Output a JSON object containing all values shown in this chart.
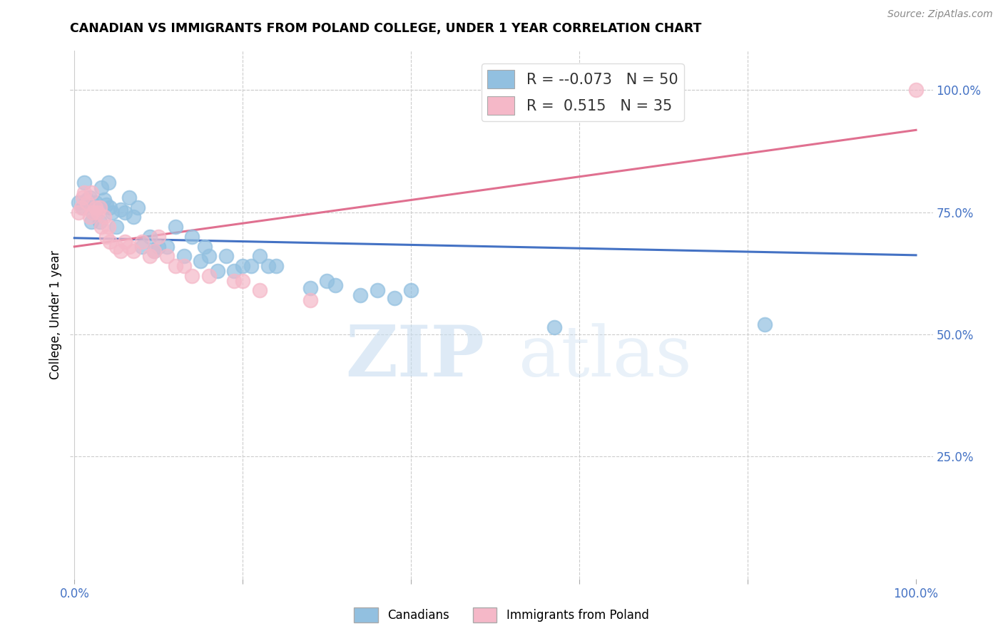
{
  "title": "CANADIAN VS IMMIGRANTS FROM POLAND COLLEGE, UNDER 1 YEAR CORRELATION CHART",
  "source": "Source: ZipAtlas.com",
  "ylabel": "College, Under 1 year",
  "right_yticks_labels": [
    "100.0%",
    "75.0%",
    "50.0%",
    "25.0%"
  ],
  "right_ytick_vals": [
    1.0,
    0.75,
    0.5,
    0.25
  ],
  "legend_blue_r": "-0.073",
  "legend_blue_n": "50",
  "legend_pink_r": "0.515",
  "legend_pink_n": "35",
  "blue_color": "#92c0e0",
  "pink_color": "#f5b8c8",
  "blue_line_color": "#4472c4",
  "pink_line_color": "#e07090",
  "watermark_zip": "ZIP",
  "watermark_atlas": "atlas",
  "blue_x": [
    0.005,
    0.01,
    0.012,
    0.015,
    0.018,
    0.02,
    0.022,
    0.025,
    0.028,
    0.03,
    0.032,
    0.035,
    0.038,
    0.04,
    0.042,
    0.045,
    0.05,
    0.055,
    0.06,
    0.065,
    0.07,
    0.075,
    0.08,
    0.09,
    0.095,
    0.1,
    0.11,
    0.12,
    0.13,
    0.14,
    0.15,
    0.155,
    0.16,
    0.17,
    0.18,
    0.19,
    0.2,
    0.21,
    0.22,
    0.23,
    0.24,
    0.28,
    0.3,
    0.31,
    0.34,
    0.36,
    0.38,
    0.4,
    0.82,
    0.57
  ],
  "blue_y": [
    0.77,
    0.76,
    0.81,
    0.775,
    0.78,
    0.73,
    0.75,
    0.77,
    0.76,
    0.73,
    0.8,
    0.775,
    0.765,
    0.81,
    0.76,
    0.75,
    0.72,
    0.755,
    0.75,
    0.78,
    0.74,
    0.76,
    0.68,
    0.7,
    0.67,
    0.68,
    0.68,
    0.72,
    0.66,
    0.7,
    0.65,
    0.68,
    0.66,
    0.63,
    0.66,
    0.63,
    0.64,
    0.64,
    0.66,
    0.64,
    0.64,
    0.595,
    0.61,
    0.6,
    0.58,
    0.59,
    0.575,
    0.59,
    0.52,
    0.515
  ],
  "pink_x": [
    0.005,
    0.008,
    0.01,
    0.012,
    0.015,
    0.018,
    0.02,
    0.022,
    0.025,
    0.028,
    0.03,
    0.032,
    0.035,
    0.038,
    0.04,
    0.042,
    0.05,
    0.055,
    0.06,
    0.065,
    0.07,
    0.08,
    0.09,
    0.095,
    0.1,
    0.11,
    0.12,
    0.13,
    0.14,
    0.16,
    0.19,
    0.2,
    0.22,
    0.28,
    1.0
  ],
  "pink_y": [
    0.75,
    0.76,
    0.78,
    0.79,
    0.77,
    0.74,
    0.79,
    0.75,
    0.76,
    0.75,
    0.76,
    0.72,
    0.74,
    0.7,
    0.72,
    0.69,
    0.68,
    0.67,
    0.69,
    0.68,
    0.67,
    0.69,
    0.66,
    0.67,
    0.7,
    0.66,
    0.64,
    0.64,
    0.62,
    0.62,
    0.61,
    0.61,
    0.59,
    0.57,
    1.0
  ]
}
